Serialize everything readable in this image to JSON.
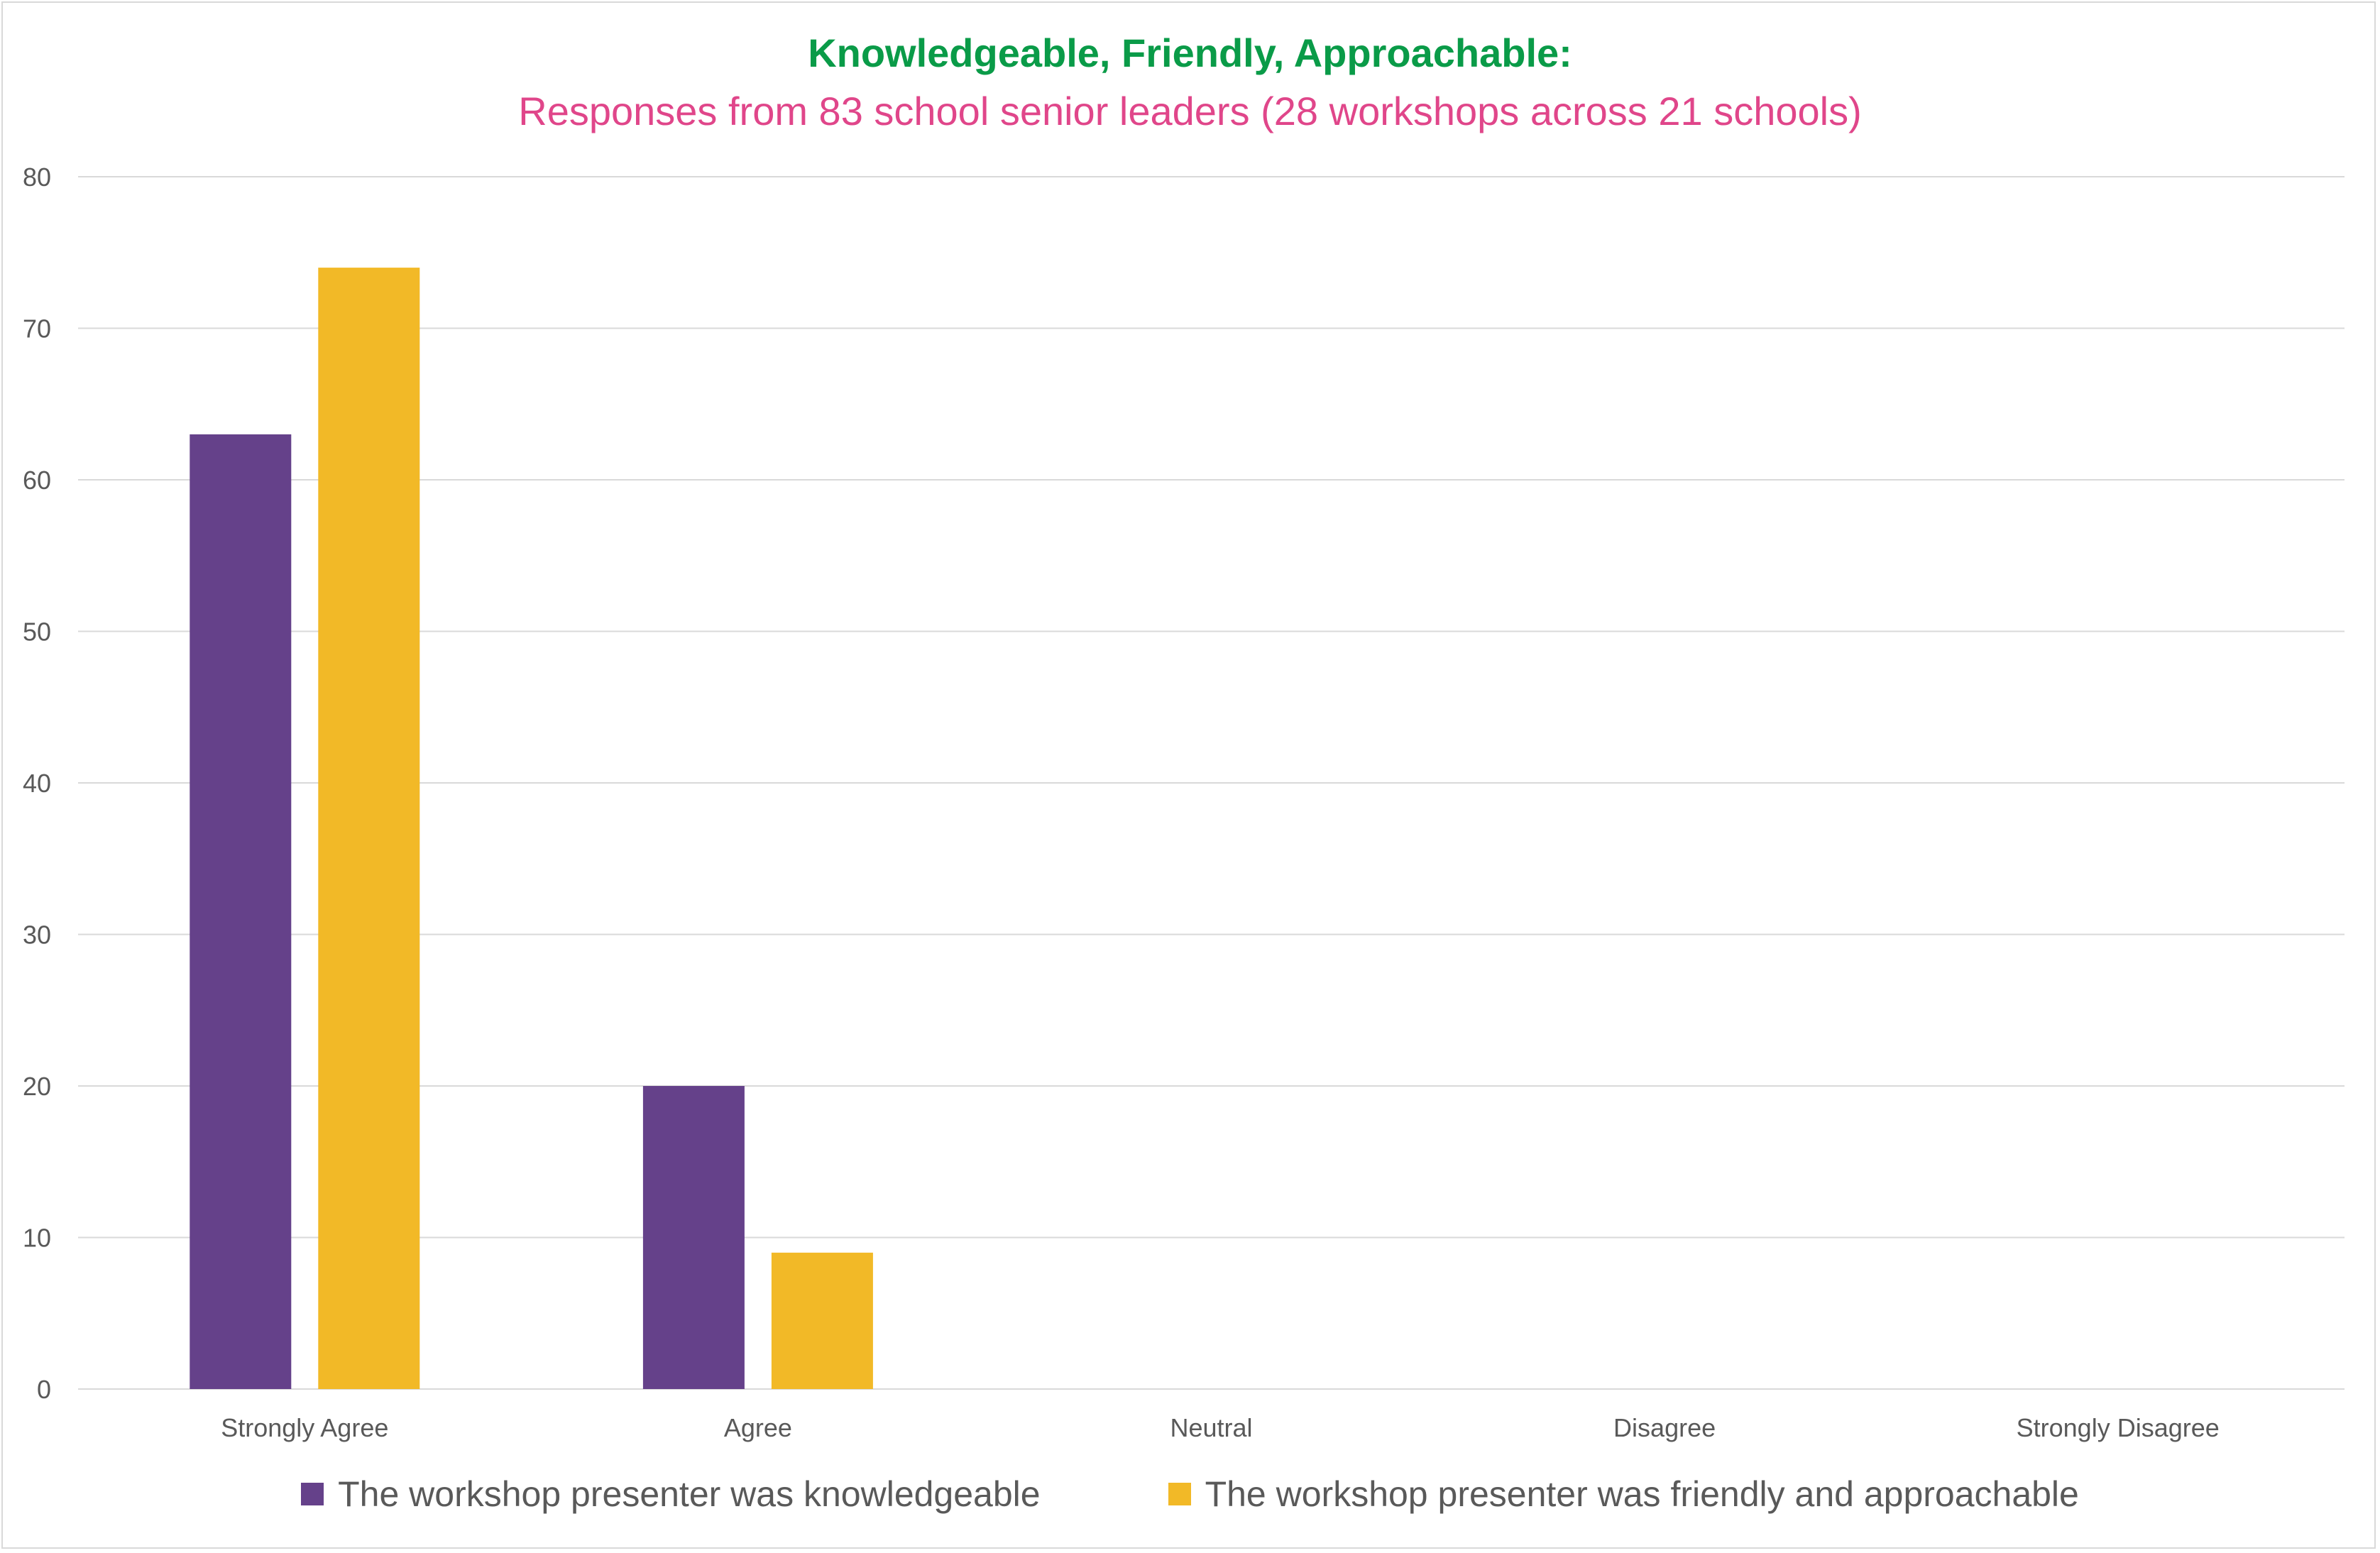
{
  "chart_data": {
    "type": "bar",
    "title": "Knowledgeable, Friendly, Approachable:",
    "subtitle": "Responses from 83 school senior leaders (28 workshops across 21 schools)",
    "categories": [
      "Strongly Agree",
      "Agree",
      "Neutral",
      "Disagree",
      "Strongly Disagree"
    ],
    "series": [
      {
        "name": "The workshop presenter was knowledgeable",
        "values": [
          63,
          20,
          0,
          0,
          0
        ],
        "color": "#65418a"
      },
      {
        "name": "The workshop presenter was friendly and approachable",
        "values": [
          74,
          9,
          0,
          0,
          0
        ],
        "color": "#f2b927"
      }
    ],
    "xlabel": "",
    "ylabel": "",
    "ylim": [
      0,
      80
    ],
    "yticks": [
      0,
      10,
      20,
      30,
      40,
      50,
      60,
      70,
      80
    ],
    "grid": true,
    "legend_position": "bottom"
  },
  "colors": {
    "title": "#0a9b48",
    "subtitle": "#e0468a",
    "gridline": "#d9d9d9",
    "axis_text": "#595959"
  }
}
